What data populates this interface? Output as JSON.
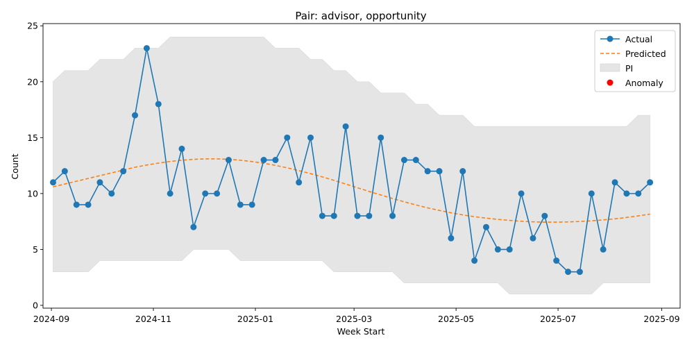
{
  "chart_data": {
    "type": "line",
    "title": "Pair: advisor, opportunity",
    "xlabel": "Week Start",
    "ylabel": "Count",
    "ylim": [
      0,
      25
    ],
    "xlim": [
      "2024-08-27",
      "2025-09-12"
    ],
    "x_ticks": [
      "2024-09",
      "2024-11",
      "2025-01",
      "2025-03",
      "2025-05",
      "2025-07",
      "2025-09"
    ],
    "y_ticks": [
      0,
      5,
      10,
      15,
      20,
      25
    ],
    "legend_position": "top-right",
    "x": [
      "2024-09-02",
      "2024-09-09",
      "2024-09-16",
      "2024-09-23",
      "2024-09-30",
      "2024-10-07",
      "2024-10-14",
      "2024-10-21",
      "2024-10-28",
      "2024-11-04",
      "2024-11-11",
      "2024-11-18",
      "2024-11-25",
      "2024-12-02",
      "2024-12-09",
      "2024-12-16",
      "2024-12-23",
      "2024-12-30",
      "2025-01-06",
      "2025-01-13",
      "2025-01-20",
      "2025-01-27",
      "2025-02-03",
      "2025-02-10",
      "2025-02-17",
      "2025-02-24",
      "2025-03-03",
      "2025-03-10",
      "2025-03-17",
      "2025-03-24",
      "2025-03-31",
      "2025-04-07",
      "2025-04-14",
      "2025-04-21",
      "2025-04-28",
      "2025-05-05",
      "2025-05-12",
      "2025-05-19",
      "2025-05-26",
      "2025-06-02",
      "2025-06-09",
      "2025-06-16",
      "2025-06-23",
      "2025-06-30",
      "2025-07-07",
      "2025-07-14",
      "2025-07-21",
      "2025-07-28",
      "2025-08-04",
      "2025-08-11",
      "2025-08-18",
      "2025-08-25"
    ],
    "series": [
      {
        "name": "Actual",
        "color": "#1f77b4",
        "marker": "circle",
        "values": [
          11,
          12,
          9,
          9,
          11,
          10,
          12,
          17,
          23,
          18,
          10,
          14,
          7,
          10,
          10,
          13,
          9,
          9,
          13,
          13,
          15,
          11,
          15,
          8,
          8,
          16,
          8,
          8,
          15,
          8,
          13,
          13,
          12,
          12,
          6,
          12,
          4,
          7,
          5,
          5,
          10,
          6,
          8,
          4,
          3,
          3,
          10,
          5,
          11,
          10,
          10,
          11
        ]
      },
      {
        "name": "Predicted",
        "color": "#ff7f0e",
        "style": "dashed",
        "values": [
          10.6,
          10.85,
          11.1,
          11.35,
          11.6,
          11.85,
          12.1,
          12.35,
          12.55,
          12.72,
          12.87,
          12.98,
          13.06,
          13.1,
          13.1,
          13.06,
          12.98,
          12.86,
          12.71,
          12.52,
          12.3,
          12.05,
          11.78,
          11.49,
          11.18,
          10.85,
          10.52,
          10.19,
          9.87,
          9.56,
          9.26,
          8.98,
          8.72,
          8.49,
          8.28,
          8.09,
          7.93,
          7.8,
          7.69,
          7.6,
          7.52,
          7.47,
          7.44,
          7.44,
          7.46,
          7.5,
          7.56,
          7.64,
          7.74,
          7.86,
          8.0,
          8.16
        ]
      }
    ],
    "interval": {
      "name": "PI",
      "color": "#e5e5e5",
      "upper": [
        20,
        21,
        21,
        21,
        22,
        22,
        22,
        23,
        23,
        23,
        24,
        24,
        24,
        24,
        24,
        24,
        24,
        24,
        24,
        23,
        23,
        23,
        22,
        22,
        21,
        21,
        20,
        20,
        19,
        19,
        19,
        18,
        18,
        17,
        17,
        17,
        16,
        16,
        16,
        16,
        16,
        16,
        16,
        16,
        16,
        16,
        16,
        16,
        16,
        16,
        17,
        17
      ],
      "lower": [
        3,
        3,
        3,
        3,
        4,
        4,
        4,
        4,
        4,
        4,
        4,
        4,
        5,
        5,
        5,
        5,
        4,
        4,
        4,
        4,
        4,
        4,
        4,
        4,
        3,
        3,
        3,
        3,
        3,
        3,
        2,
        2,
        2,
        2,
        2,
        2,
        2,
        2,
        2,
        1,
        1,
        1,
        1,
        1,
        1,
        1,
        1,
        2,
        2,
        2,
        2,
        2
      ]
    },
    "anomaly": {
      "name": "Anomaly",
      "color": "#ff0000",
      "points": []
    }
  }
}
